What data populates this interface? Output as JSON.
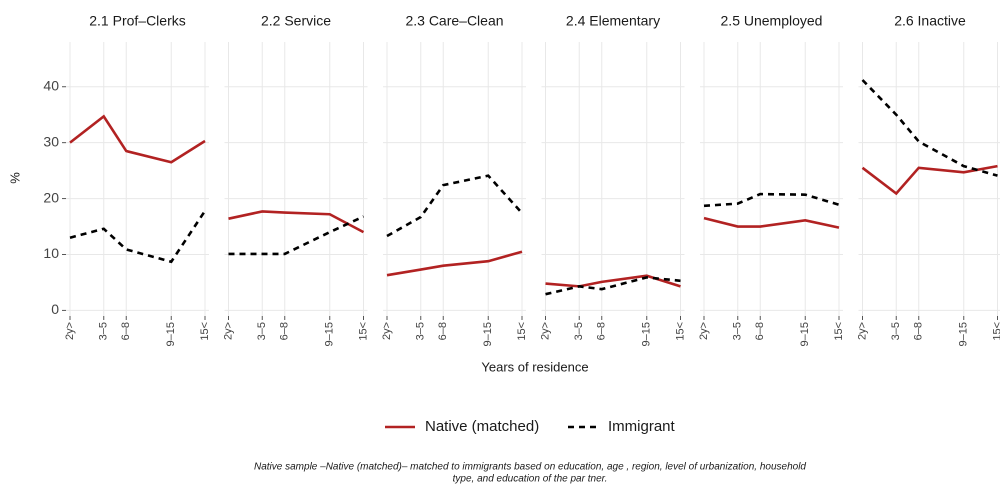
{
  "chart_data": [
    {
      "type": "line",
      "title": "2.1 Prof–Clerks",
      "x": [
        1,
        4,
        6,
        10,
        13
      ],
      "xlim": [
        1,
        13
      ],
      "xticks": [
        {
          "value": 1,
          "label": "2y>"
        },
        {
          "value": 4,
          "label": "3–5"
        },
        {
          "value": 6,
          "label": "6–8"
        },
        {
          "value": 10,
          "label": "9–15"
        },
        {
          "value": 13,
          "label": "15<"
        }
      ],
      "ylim": [
        -1,
        48
      ],
      "yticks": [
        0,
        10,
        20,
        30,
        40
      ],
      "grid": true,
      "series": [
        {
          "name": "Native (matched)",
          "color": "#b22222",
          "dash": "solid",
          "values": [
            30,
            34.7,
            28.5,
            26.5,
            30.3
          ]
        },
        {
          "name": "Immigrant",
          "color": "#000000",
          "dash": "dashed",
          "values": [
            13,
            14.6,
            10.9,
            8.7,
            17.8
          ]
        }
      ]
    },
    {
      "type": "line",
      "title": "2.2 Service",
      "x": [
        1,
        4,
        6,
        10,
        13
      ],
      "xlim": [
        1,
        13
      ],
      "xticks": [
        {
          "value": 1,
          "label": "2y>"
        },
        {
          "value": 4,
          "label": "3–5"
        },
        {
          "value": 6,
          "label": "6–8"
        },
        {
          "value": 10,
          "label": "9–15"
        },
        {
          "value": 13,
          "label": "15<"
        }
      ],
      "ylim": [
        -1,
        48
      ],
      "yticks": [
        0,
        10,
        20,
        30,
        40
      ],
      "grid": true,
      "series": [
        {
          "name": "Native (matched)",
          "color": "#b22222",
          "dash": "solid",
          "values": [
            16.4,
            17.7,
            17.5,
            17.2,
            14
          ]
        },
        {
          "name": "Immigrant",
          "color": "#000000",
          "dash": "dashed",
          "values": [
            10.1,
            10.1,
            10.1,
            14,
            16.8
          ]
        }
      ]
    },
    {
      "type": "line",
      "title": "2.3 Care–Clean",
      "x": [
        1,
        4,
        6,
        10,
        13
      ],
      "xlim": [
        1,
        13
      ],
      "xticks": [
        {
          "value": 1,
          "label": "2y>"
        },
        {
          "value": 4,
          "label": "3–5"
        },
        {
          "value": 6,
          "label": "6–8"
        },
        {
          "value": 10,
          "label": "9–15"
        },
        {
          "value": 13,
          "label": "15<"
        }
      ],
      "ylim": [
        -1,
        48
      ],
      "yticks": [
        0,
        10,
        20,
        30,
        40
      ],
      "grid": true,
      "series": [
        {
          "name": "Native (matched)",
          "color": "#b22222",
          "dash": "solid",
          "values": [
            6.3,
            7.3,
            8,
            8.8,
            10.5
          ]
        },
        {
          "name": "Immigrant",
          "color": "#000000",
          "dash": "dashed",
          "values": [
            13.3,
            16.7,
            22.4,
            24.1,
            17.4
          ]
        }
      ]
    },
    {
      "type": "line",
      "title": "2.4 Elementary",
      "x": [
        1,
        4,
        6,
        10,
        13
      ],
      "xlim": [
        1,
        13
      ],
      "xticks": [
        {
          "value": 1,
          "label": "2y>"
        },
        {
          "value": 4,
          "label": "3–5"
        },
        {
          "value": 6,
          "label": "6–8"
        },
        {
          "value": 10,
          "label": "9–15"
        },
        {
          "value": 13,
          "label": "15<"
        }
      ],
      "ylim": [
        -1,
        48
      ],
      "yticks": [
        0,
        10,
        20,
        30,
        40
      ],
      "grid": true,
      "series": [
        {
          "name": "Native (matched)",
          "color": "#b22222",
          "dash": "solid",
          "values": [
            4.8,
            4.3,
            5.1,
            6.2,
            4.3
          ]
        },
        {
          "name": "Immigrant",
          "color": "#000000",
          "dash": "dashed",
          "values": [
            2.9,
            4.3,
            3.8,
            5.9,
            5.3
          ]
        }
      ]
    },
    {
      "type": "line",
      "title": "2.5 Unemployed",
      "x": [
        1,
        4,
        6,
        10,
        13
      ],
      "xlim": [
        1,
        13
      ],
      "xticks": [
        {
          "value": 1,
          "label": "2y>"
        },
        {
          "value": 4,
          "label": "3–5"
        },
        {
          "value": 6,
          "label": "6–8"
        },
        {
          "value": 10,
          "label": "9–15"
        },
        {
          "value": 13,
          "label": "15<"
        }
      ],
      "ylim": [
        -1,
        48
      ],
      "yticks": [
        0,
        10,
        20,
        30,
        40
      ],
      "grid": true,
      "series": [
        {
          "name": "Native (matched)",
          "color": "#b22222",
          "dash": "solid",
          "values": [
            16.5,
            15,
            15,
            16.1,
            14.8
          ]
        },
        {
          "name": "Immigrant",
          "color": "#000000",
          "dash": "dashed",
          "values": [
            18.7,
            19.1,
            20.8,
            20.7,
            18.9
          ]
        }
      ]
    },
    {
      "type": "line",
      "title": "2.6 Inactive",
      "x": [
        1,
        4,
        6,
        10,
        13
      ],
      "xlim": [
        1,
        13
      ],
      "xticks": [
        {
          "value": 1,
          "label": "2y>"
        },
        {
          "value": 4,
          "label": "3–5"
        },
        {
          "value": 6,
          "label": "6–8"
        },
        {
          "value": 10,
          "label": "9–15"
        },
        {
          "value": 13,
          "label": "15<"
        }
      ],
      "ylim": [
        -1,
        48
      ],
      "yticks": [
        0,
        10,
        20,
        30,
        40
      ],
      "grid": true,
      "series": [
        {
          "name": "Native (matched)",
          "color": "#b22222",
          "dash": "solid",
          "values": [
            25.5,
            20.9,
            25.5,
            24.7,
            25.8
          ]
        },
        {
          "name": "Immigrant",
          "color": "#000000",
          "dash": "dashed",
          "values": [
            41.2,
            35,
            30.2,
            25.8,
            24.1
          ]
        }
      ]
    }
  ],
  "figure": {
    "ylabel": "%",
    "xlabel": "Years of residence",
    "caption": [
      "Native sample –Native (matched)– matched to immigrants based on education, age , region, level of urbanization, household",
      "type, and education of the par tner."
    ]
  }
}
